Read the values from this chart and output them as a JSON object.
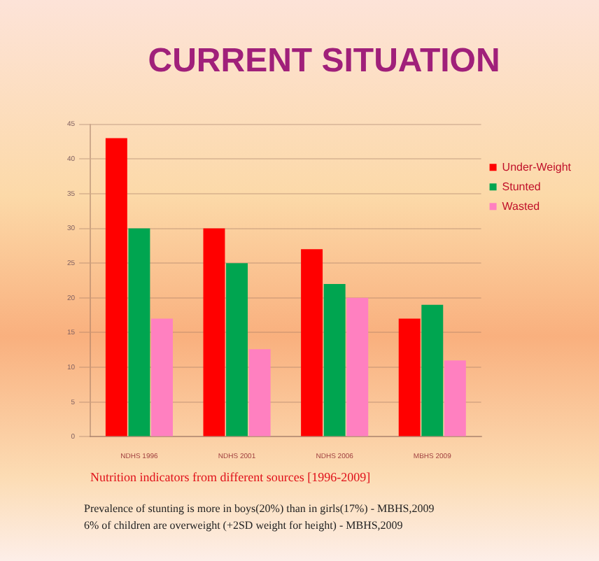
{
  "chart_data": {
    "type": "bar",
    "title": "CURRENT SITUATION",
    "xlabel": "Nutrition indicators from different sources [1996-2009]",
    "categories": [
      "NDHS 1996",
      "NDHS 2001",
      "NDHS 2006",
      "MBHS 2009"
    ],
    "series": [
      {
        "name": "Under-Weight",
        "color": "#ff0000",
        "values": [
          43,
          30,
          27,
          17
        ]
      },
      {
        "name": "Stunted",
        "color": "#00a550",
        "values": [
          30,
          25,
          22,
          19
        ]
      },
      {
        "name": "Wasted",
        "color": "#ff80c0",
        "values": [
          17,
          12.6,
          20,
          11
        ]
      }
    ],
    "ylim": [
      0,
      45
    ],
    "yticks": [
      0,
      5,
      10,
      15,
      20,
      25,
      30,
      35,
      40,
      45
    ],
    "grid": "y",
    "legend": "right",
    "annotations": [
      "Prevalence of stunting is more in boys(20%) than in girls(17%) - MBHS,2009",
      "6% of children are overweight (+2SD weight for height) - MBHS,2009"
    ]
  }
}
